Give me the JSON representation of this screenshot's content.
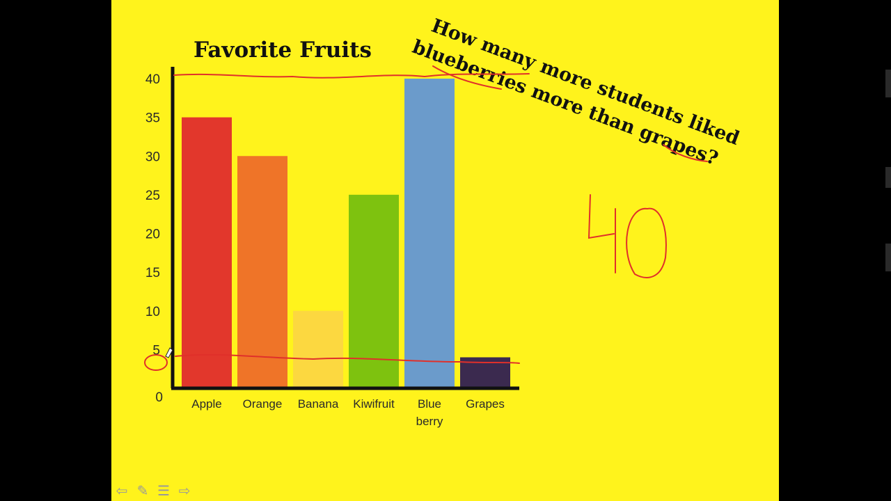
{
  "chart_data": {
    "type": "bar",
    "title": "Favorite Fruits",
    "categories": [
      "Apple",
      "Orange",
      "Banana",
      "Kiwifruit",
      "Blue|berry",
      "Grapes"
    ],
    "values": [
      35,
      30,
      10,
      25,
      40,
      4
    ],
    "colors": [
      "#e2372c",
      "#ef7428",
      "#fcd840",
      "#7ec20f",
      "#6b9bcb",
      "#3b2a4f"
    ],
    "ylim": [
      0,
      40
    ],
    "yticks": [
      0,
      5,
      10,
      15,
      20,
      25,
      30,
      35,
      40
    ],
    "xlabel": "",
    "ylabel": "",
    "grid": false,
    "legend": "none"
  },
  "annotation": {
    "question_lines": [
      "How many more students liked",
      "blueberries more than grapes?"
    ],
    "handwritten_answer": "40",
    "ink_color": "#e0302a"
  },
  "toolbar": {
    "icons": [
      "arrow-left-icon",
      "pen-icon",
      "menu-icon",
      "arrow-right-icon"
    ]
  }
}
